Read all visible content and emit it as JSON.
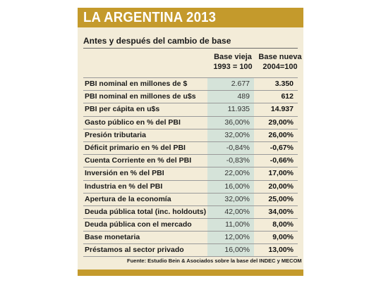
{
  "header": {
    "title": "LA ARGENTINA 2013",
    "subtitle": "Antes y después del cambio de base"
  },
  "columns": {
    "old_line1": "Base vieja",
    "old_line2": "1993 = 100",
    "new_line1": "Base nueva",
    "new_line2": "2004=100"
  },
  "rows": [
    {
      "label": "PBI nominal en millones de $",
      "old": "2.677",
      "new": "3.350"
    },
    {
      "label": "PBI nominal en millones de u$s",
      "old": "489",
      "new": "612"
    },
    {
      "label": "PBI per cápita en u$s",
      "old": "11.935",
      "new": "14.937"
    },
    {
      "label": "Gasto público en % del PBI",
      "old": "36,00%",
      "new": "29,00%"
    },
    {
      "label": "Presión tributaria",
      "old": "32,00%",
      "new": "26,00%"
    },
    {
      "label": "Déficit primario en % del PBI",
      "old": "-0,84%",
      "new": "-0,67%"
    },
    {
      "label": "Cuenta Corriente en % del PBI",
      "old": "-0,83%",
      "new": "-0,66%"
    },
    {
      "label": "Inversión en % del PBI",
      "old": "22,00%",
      "new": "17,00%"
    },
    {
      "label": "Industria en % del PBI",
      "old": "16,00%",
      "new": "20,00%"
    },
    {
      "label": "Apertura de la economía",
      "old": "32,00%",
      "new": "25,00%"
    },
    {
      "label": "Deuda pública total (inc. holdouts)",
      "old": "42,00%",
      "new": "34,00%"
    },
    {
      "label": "Deuda pública con el mercado",
      "old": "11,00%",
      "new": "8,00%"
    },
    {
      "label": "Base monetaria",
      "old": "12,00%",
      "new": "9,00%"
    },
    {
      "label": "Préstamos al sector privado",
      "old": "16,00%",
      "new": "13,00%"
    }
  ],
  "source": "Fuente: Estudio Bein & Asociados sobre la base del  INDEC y MECOM",
  "colors": {
    "accent": "#c49a2c",
    "background": "#f3ecd8",
    "old_column": "#d5e3d9"
  }
}
